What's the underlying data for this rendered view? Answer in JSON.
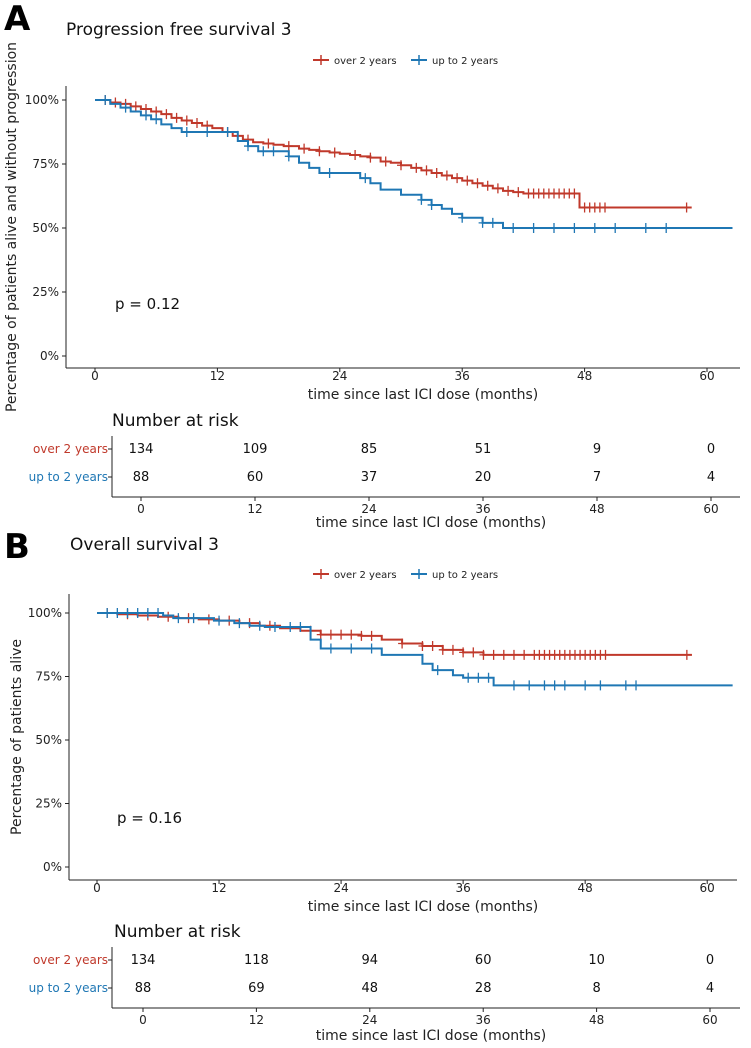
{
  "colors": {
    "over": "#c0392b",
    "upto": "#1f77b4",
    "axis": "#222222"
  },
  "legend_labels": [
    "over 2 years",
    "up to 2 years"
  ],
  "chart_data": [
    {
      "panel": "A",
      "type": "line",
      "title": "Progression free survival 3",
      "ylabel": "Percentage of patients alive and without progression",
      "xlabel": "time since last ICI dose (months)",
      "xlim": [
        -2,
        62.5
      ],
      "ylim": [
        0,
        1
      ],
      "xticks": [
        0,
        12,
        24,
        36,
        48,
        60
      ],
      "yticks": [
        0,
        0.25,
        0.5,
        0.75,
        1
      ],
      "ytick_labels": [
        "0%",
        "25%",
        "50%",
        "75%",
        "100%"
      ],
      "pvalue_text": "p = 0.12",
      "series": [
        {
          "name": "over 2 years",
          "color": "#c0392b",
          "x_end": 58.5,
          "times": [
            0,
            1.5,
            2.5,
            3.5,
            4.5,
            5.5,
            6.5,
            7.5,
            8.5,
            9.5,
            10.5,
            11.5,
            12.5,
            13.5,
            14.5,
            15.5,
            16.5,
            17.5,
            18.5,
            20,
            21,
            22,
            23,
            24,
            25,
            26,
            27,
            28,
            29,
            30,
            31,
            32,
            33,
            34,
            35,
            36,
            37,
            38,
            39,
            40,
            41,
            42,
            47.5
          ],
          "values": [
            1,
            0.99,
            0.985,
            0.975,
            0.965,
            0.955,
            0.945,
            0.93,
            0.92,
            0.91,
            0.9,
            0.89,
            0.875,
            0.86,
            0.845,
            0.835,
            0.83,
            0.825,
            0.82,
            0.81,
            0.805,
            0.8,
            0.795,
            0.79,
            0.785,
            0.78,
            0.775,
            0.76,
            0.755,
            0.745,
            0.735,
            0.725,
            0.715,
            0.705,
            0.695,
            0.685,
            0.675,
            0.665,
            0.655,
            0.645,
            0.64,
            0.635,
            0.58
          ],
          "censors": [
            1,
            2,
            3,
            4,
            5,
            6,
            7,
            8,
            9,
            10,
            11,
            13,
            14,
            15,
            17,
            19,
            20.5,
            22,
            23.5,
            25.5,
            27,
            28.5,
            30,
            31.5,
            32.5,
            33.5,
            34.5,
            35.5,
            36.5,
            37.5,
            38.5,
            39.5,
            40.5,
            41.5,
            42.5,
            43,
            43.5,
            44,
            44.5,
            45,
            45.5,
            46,
            46.5,
            47,
            48,
            48.5,
            49,
            49.5,
            50,
            58
          ]
        },
        {
          "name": "up to 2 years",
          "color": "#1f77b4",
          "x_end": 62.5,
          "times": [
            0,
            1.5,
            2.5,
            3.5,
            4.5,
            5.5,
            6.5,
            7.5,
            8.5,
            14,
            15,
            16,
            19,
            20,
            21,
            22,
            26,
            27,
            28,
            30,
            32,
            33,
            34,
            35,
            36,
            38,
            40
          ],
          "values": [
            1,
            0.985,
            0.97,
            0.955,
            0.94,
            0.925,
            0.905,
            0.89,
            0.875,
            0.84,
            0.82,
            0.8,
            0.78,
            0.755,
            0.735,
            0.715,
            0.695,
            0.675,
            0.65,
            0.63,
            0.61,
            0.59,
            0.575,
            0.555,
            0.54,
            0.52,
            0.5
          ],
          "censors": [
            1,
            3,
            5,
            6,
            9,
            11,
            13,
            15,
            16.5,
            17.5,
            19,
            23,
            26.5,
            32,
            33,
            36,
            38,
            39,
            41,
            43,
            45,
            47,
            49,
            51,
            54,
            56
          ]
        }
      ],
      "risk_table": {
        "title": "Number at risk",
        "xlabel": "time since last ICI dose (months)",
        "xticks": [
          0,
          12,
          24,
          36,
          48,
          60
        ],
        "rows": [
          {
            "label": "over 2 years",
            "color": "#c0392b",
            "values": [
              "134",
              "109",
              "85",
              "51",
              "9",
              "0"
            ]
          },
          {
            "label": "up to 2 years",
            "color": "#1f77b4",
            "values": [
              "88",
              "60",
              "37",
              "20",
              "7",
              "4"
            ]
          }
        ]
      }
    },
    {
      "panel": "B",
      "type": "line",
      "title": "Overall survival 3",
      "ylabel": "Percentage of patients alive",
      "xlabel": "time since last ICI dose (months)",
      "xlim": [
        -2,
        62.5
      ],
      "ylim": [
        0,
        1
      ],
      "xticks": [
        0,
        12,
        24,
        36,
        48,
        60
      ],
      "yticks": [
        0,
        0.25,
        0.5,
        0.75,
        1
      ],
      "ytick_labels": [
        "0%",
        "25%",
        "50%",
        "75%",
        "100%"
      ],
      "pvalue_text": "p = 0.16",
      "series": [
        {
          "name": "over 2 years",
          "color": "#c0392b",
          "x_end": 58.5,
          "times": [
            0,
            2,
            4,
            6,
            8,
            10,
            12,
            14,
            16,
            18,
            20,
            22,
            26,
            28,
            30,
            32,
            34,
            36,
            38
          ],
          "values": [
            1,
            0.995,
            0.99,
            0.985,
            0.98,
            0.975,
            0.97,
            0.96,
            0.95,
            0.94,
            0.93,
            0.915,
            0.91,
            0.895,
            0.88,
            0.87,
            0.855,
            0.845,
            0.835
          ],
          "censors": [
            1,
            3,
            5,
            7,
            9,
            11,
            13,
            15,
            17,
            21,
            22,
            23,
            24,
            25,
            26,
            27,
            30,
            32,
            33,
            34,
            35,
            36,
            37,
            38,
            39,
            40,
            41,
            42,
            43,
            43.5,
            44,
            44.5,
            45,
            45.5,
            46,
            46.5,
            47,
            47.5,
            48,
            48.5,
            49,
            49.5,
            50,
            58
          ]
        },
        {
          "name": "up to 2 years",
          "color": "#1f77b4",
          "x_end": 62.5,
          "times": [
            0,
            6.5,
            7.5,
            11.5,
            13.5,
            15,
            16.5,
            21,
            22,
            28,
            32,
            33,
            35,
            36,
            39
          ],
          "values": [
            1,
            0.99,
            0.98,
            0.97,
            0.96,
            0.95,
            0.945,
            0.895,
            0.86,
            0.835,
            0.8,
            0.775,
            0.755,
            0.745,
            0.715
          ],
          "censors": [
            1,
            2,
            3,
            4,
            5,
            6,
            8,
            9.5,
            12,
            14,
            16,
            17.5,
            19,
            20,
            23,
            25,
            27,
            33.5,
            36.5,
            37.5,
            38.5,
            41,
            42.5,
            44,
            45,
            46,
            48,
            49.5,
            52,
            53
          ]
        }
      ],
      "risk_table": {
        "title": "Number at risk",
        "xlabel": "time since last ICI dose (months)",
        "xticks": [
          0,
          12,
          24,
          36,
          48,
          60
        ],
        "rows": [
          {
            "label": "over 2 years",
            "color": "#c0392b",
            "values": [
              "134",
              "118",
              "94",
              "60",
              "10",
              "0"
            ]
          },
          {
            "label": "up to 2 years",
            "color": "#1f77b4",
            "values": [
              "88",
              "69",
              "48",
              "28",
              "8",
              "4"
            ]
          }
        ]
      }
    }
  ]
}
